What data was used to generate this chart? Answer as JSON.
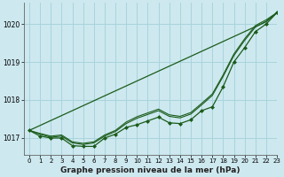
{
  "background_color": "#cde8ef",
  "grid_color": "#a8d4dc",
  "line_color": "#1a5c1a",
  "marker_color": "#1a5c1a",
  "title": "Graphe pression niveau de la mer (hPa)",
  "xlim": [
    -0.5,
    23
  ],
  "ylim": [
    1016.55,
    1020.55
  ],
  "yticks": [
    1017,
    1018,
    1019,
    1020
  ],
  "xticks": [
    0,
    1,
    2,
    3,
    4,
    5,
    6,
    7,
    8,
    9,
    10,
    11,
    12,
    13,
    14,
    15,
    16,
    17,
    18,
    19,
    20,
    21,
    22,
    23
  ],
  "series": {
    "main": [
      1017.2,
      1017.05,
      1017.0,
      1017.0,
      1016.8,
      1016.78,
      1016.78,
      1017.0,
      1017.1,
      1017.28,
      1017.35,
      1017.45,
      1017.55,
      1017.4,
      1017.38,
      1017.48,
      1017.72,
      1017.82,
      1018.35,
      1019.0,
      1019.38,
      1019.8,
      1020.0,
      1020.3
    ],
    "linear": [
      1017.2,
      1017.33,
      1017.46,
      1017.59,
      1017.72,
      1017.85,
      1017.98,
      1018.11,
      1018.24,
      1018.37,
      1018.5,
      1018.63,
      1018.76,
      1018.89,
      1019.02,
      1019.15,
      1019.28,
      1019.41,
      1019.54,
      1019.67,
      1019.8,
      1019.93,
      1020.06,
      1020.3
    ],
    "band1": [
      1017.2,
      1017.1,
      1017.02,
      1017.05,
      1016.87,
      1016.83,
      1016.87,
      1017.05,
      1017.17,
      1017.38,
      1017.52,
      1017.62,
      1017.72,
      1017.57,
      1017.53,
      1017.63,
      1017.87,
      1018.12,
      1018.62,
      1019.17,
      1019.57,
      1019.92,
      1020.07,
      1020.3
    ],
    "band2": [
      1017.2,
      1017.12,
      1017.05,
      1017.08,
      1016.9,
      1016.86,
      1016.9,
      1017.08,
      1017.2,
      1017.42,
      1017.56,
      1017.66,
      1017.76,
      1017.61,
      1017.57,
      1017.67,
      1017.91,
      1018.16,
      1018.66,
      1019.21,
      1019.61,
      1019.96,
      1020.11,
      1020.3
    ]
  }
}
